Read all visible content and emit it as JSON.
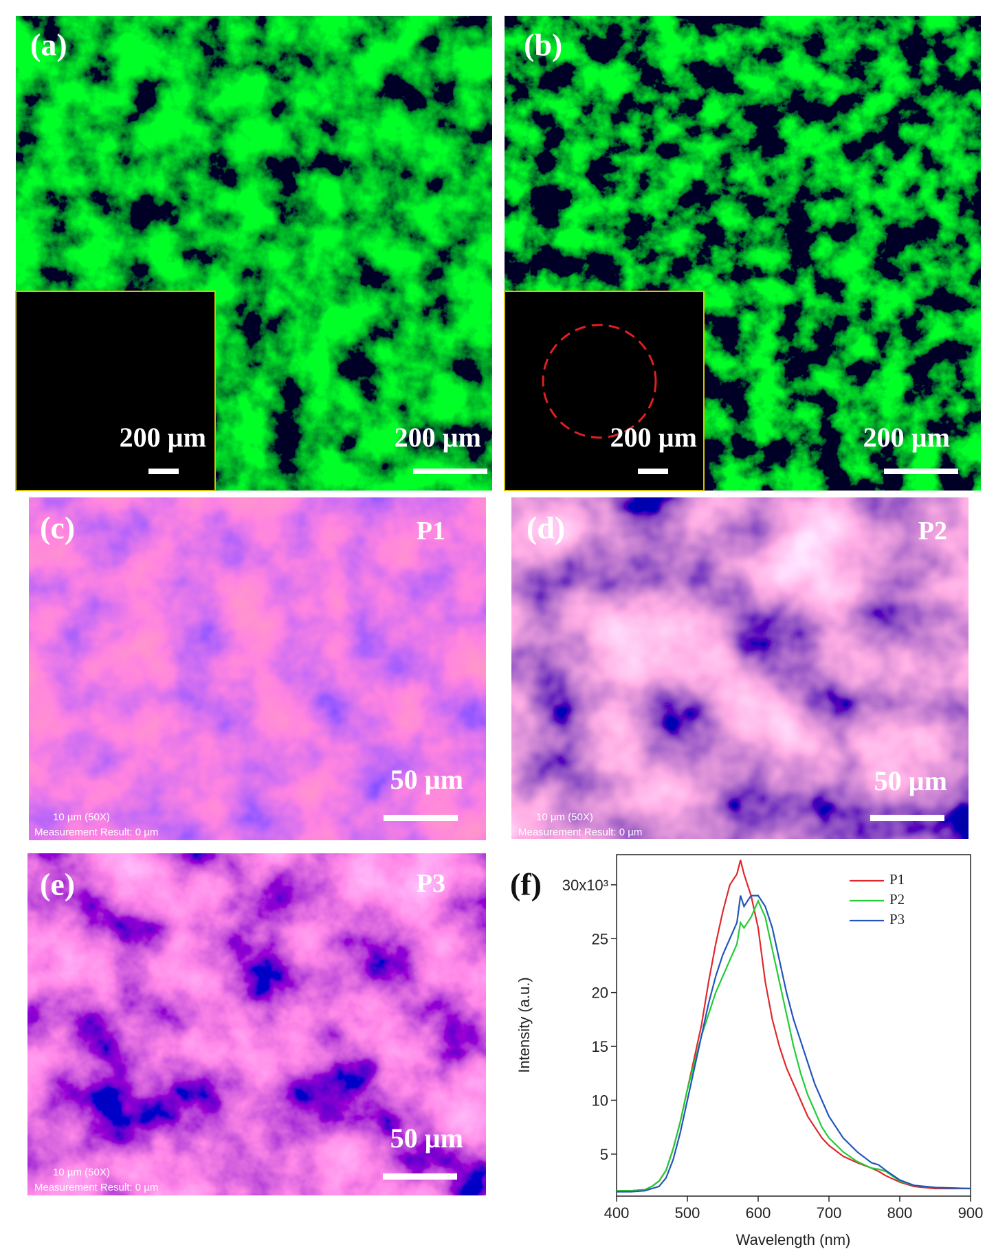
{
  "panels": [
    {
      "label": "(a)",
      "scale": "200 µm",
      "inset_scale": "200 µm"
    },
    {
      "label": "(b)",
      "scale": "200 µm",
      "inset_scale": "200 µm"
    },
    {
      "label": "(c)",
      "point": "P1",
      "scale": "50 µm",
      "info": "10 µm (50X)",
      "measurement": "Measurement Result: 0 µm"
    },
    {
      "label": "(d)",
      "point": "P2",
      "scale": "50 µm",
      "info": "10 µm (50X)",
      "measurement": "Measurement Result: 0 µm"
    },
    {
      "label": "(e)",
      "point": "P3",
      "scale": "50 µm",
      "info": "10 µm (50X)",
      "measurement": "Measurement Result: 0 µm"
    }
  ],
  "chart_data": {
    "type": "line",
    "label": "(f)",
    "x_label": "Wavelength (nm)",
    "y_label": "Intensity (a.u.)",
    "x": [
      400,
      420,
      440,
      450,
      460,
      470,
      480,
      490,
      500,
      510,
      520,
      530,
      540,
      550,
      560,
      570,
      575,
      580,
      585,
      590,
      600,
      610,
      620,
      630,
      640,
      650,
      660,
      670,
      680,
      690,
      700,
      720,
      740,
      760,
      770,
      780,
      800,
      820,
      850,
      900
    ],
    "series": [
      {
        "name": "P1",
        "color": "#e0282c",
        "values": [
          1.6,
          1.6,
          1.7,
          2.0,
          2.5,
          3.5,
          5.5,
          8,
          11,
          14,
          17,
          21,
          24.5,
          27.5,
          30,
          31,
          32.3,
          31,
          30,
          29,
          26,
          21,
          17.5,
          15,
          13,
          11.5,
          10,
          8.5,
          7.5,
          6.5,
          5.8,
          4.8,
          4.2,
          3.7,
          3.4,
          3.0,
          2.4,
          2.0,
          1.8,
          1.8
        ]
      },
      {
        "name": "P2",
        "color": "#22cc33",
        "values": [
          1.6,
          1.6,
          1.7,
          2.0,
          2.5,
          3.5,
          5.5,
          8,
          11,
          13.5,
          16,
          18,
          20,
          21.5,
          23,
          24.5,
          26.5,
          26,
          26.5,
          27,
          28.5,
          27,
          24,
          21,
          18,
          15,
          12.5,
          10.5,
          9,
          7.5,
          6.5,
          5.2,
          4.3,
          3.7,
          3.6,
          3.4,
          2.5,
          2.1,
          1.9,
          1.8
        ]
      },
      {
        "name": "P3",
        "color": "#2255bb",
        "values": [
          1.5,
          1.5,
          1.6,
          1.8,
          2.0,
          2.8,
          4.5,
          7,
          10,
          13,
          16,
          19,
          21.5,
          23.5,
          25,
          26.5,
          29,
          28,
          28.5,
          29,
          29,
          28,
          26,
          23,
          20,
          17.5,
          15.5,
          13.5,
          11.5,
          10,
          8.5,
          6.5,
          5.2,
          4.2,
          4.0,
          3.5,
          2.6,
          2.1,
          1.9,
          1.8
        ]
      }
    ],
    "xlim": [
      400,
      900
    ],
    "xticks": [
      400,
      500,
      600,
      700,
      800,
      900
    ],
    "ylim": [
      1.1,
      32.8
    ],
    "yticks": [
      5,
      10,
      15,
      20,
      25,
      {
        "value": 30,
        "label": "30x10³"
      }
    ],
    "grid": false,
    "legend": "upper right"
  }
}
